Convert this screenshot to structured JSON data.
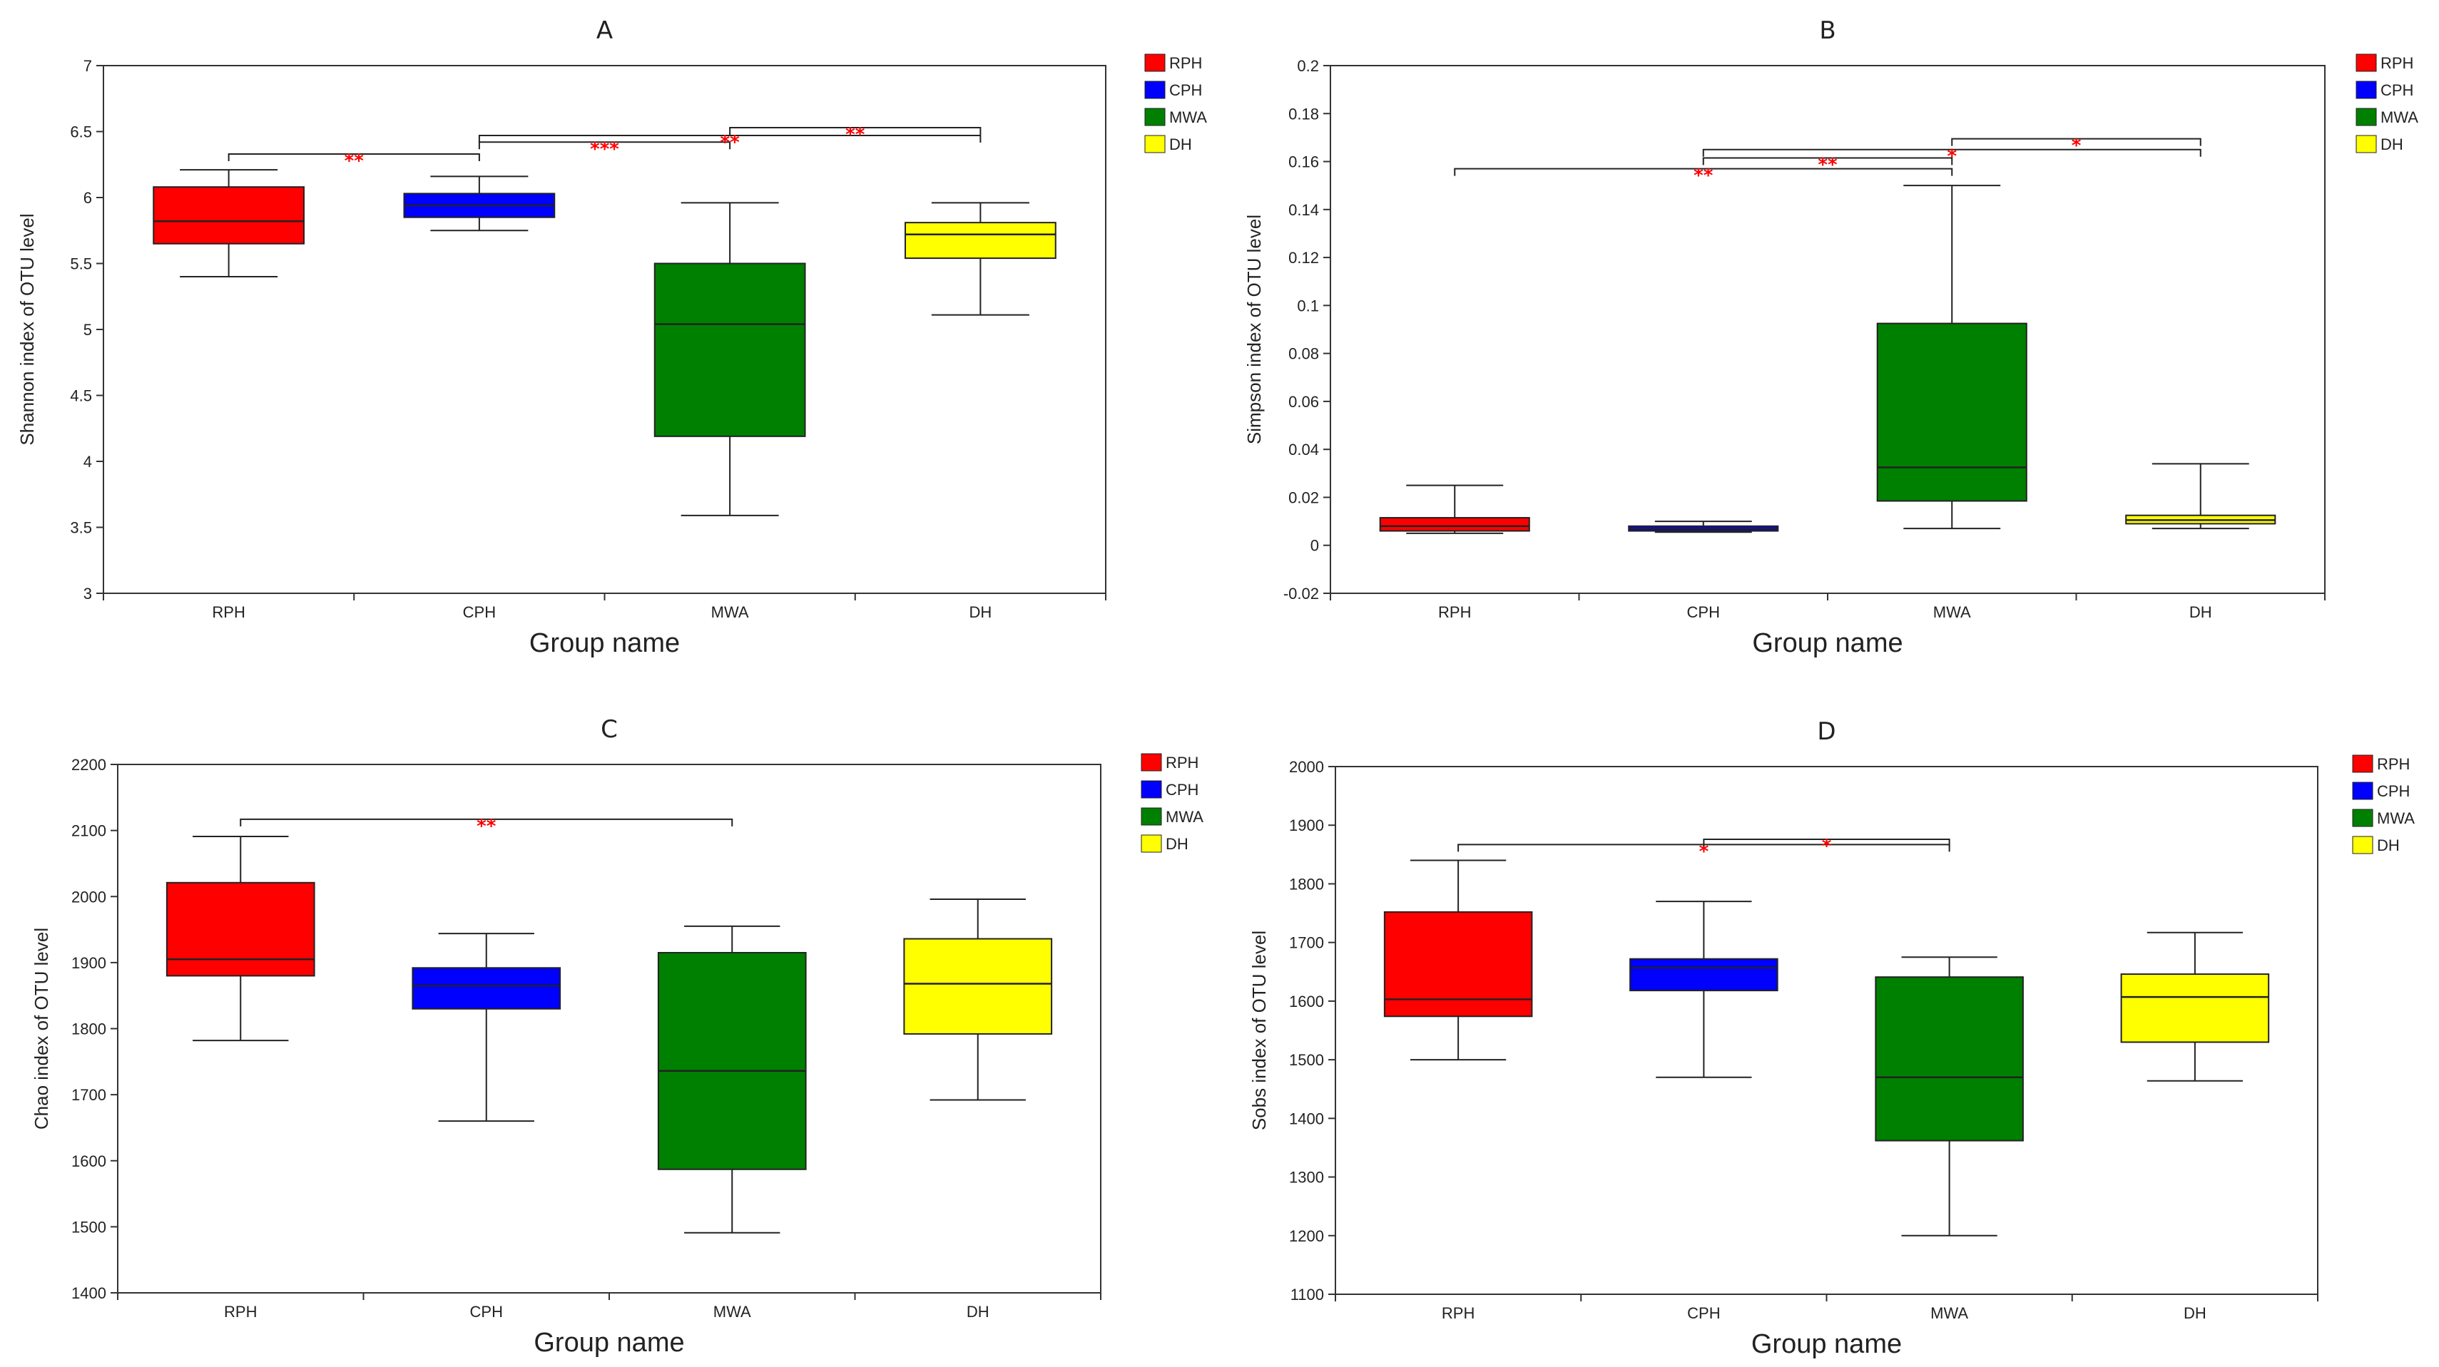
{
  "colors": {
    "RPH": "#ff0000",
    "CPH": "#0000ff",
    "MWA": "#008000",
    "DH": "#ffff00"
  },
  "legend": [
    "RPH",
    "CPH",
    "MWA",
    "DH"
  ],
  "chart_data": [
    {
      "type": "box",
      "title": "A",
      "xlabel": "Group name",
      "ylabel": "Shannon index of OTU level",
      "ylim": [
        3,
        7
      ],
      "yticks": [
        "3",
        "3.5",
        "4",
        "4.5",
        "5",
        "5.5",
        "6",
        "6.5",
        "7"
      ],
      "categories": [
        "RPH",
        "CPH",
        "MWA",
        "DH"
      ],
      "boxes": [
        {
          "min": 5.4,
          "q1": 5.65,
          "median": 5.82,
          "q3": 6.08,
          "max": 6.21
        },
        {
          "min": 5.75,
          "q1": 5.85,
          "median": 5.94,
          "q3": 6.03,
          "max": 6.16
        },
        {
          "min": 3.59,
          "q1": 4.19,
          "median": 5.04,
          "q3": 5.5,
          "max": 5.96
        },
        {
          "min": 5.11,
          "q1": 5.54,
          "median": 5.72,
          "q3": 5.81,
          "max": 5.96
        }
      ],
      "significance": [
        {
          "from": 0,
          "to": 1,
          "y": 6.33,
          "label": "**"
        },
        {
          "from": 1,
          "to": 2,
          "y": 6.42,
          "label": "***"
        },
        {
          "from": 1,
          "to": 3,
          "y": 6.47,
          "label": "**"
        },
        {
          "from": 2,
          "to": 3,
          "y": 6.53,
          "label": "**"
        }
      ]
    },
    {
      "type": "box",
      "title": "B",
      "xlabel": "Group name",
      "ylabel": "Simpson index of OTU level",
      "ylim": [
        -0.02,
        0.2
      ],
      "yticks": [
        "-0.02",
        "0",
        "0.02",
        "0.04",
        "0.06",
        "0.08",
        "0.1",
        "0.12",
        "0.14",
        "0.16",
        "0.18",
        "0.2"
      ],
      "categories": [
        "RPH",
        "CPH",
        "MWA",
        "DH"
      ],
      "boxes": [
        {
          "min": 0.005,
          "q1": 0.006,
          "median": 0.008,
          "q3": 0.0115,
          "max": 0.025
        },
        {
          "min": 0.0055,
          "q1": 0.006,
          "median": 0.007,
          "q3": 0.008,
          "max": 0.01
        },
        {
          "min": 0.007,
          "q1": 0.0185,
          "median": 0.0325,
          "q3": 0.0925,
          "max": 0.15
        },
        {
          "min": 0.007,
          "q1": 0.009,
          "median": 0.0105,
          "q3": 0.0125,
          "max": 0.034
        }
      ],
      "significance": [
        {
          "from": 0,
          "to": 2,
          "y": 0.157,
          "label": "**"
        },
        {
          "from": 1,
          "to": 2,
          "y": 0.1615,
          "label": "**"
        },
        {
          "from": 1,
          "to": 3,
          "y": 0.165,
          "label": "*"
        },
        {
          "from": 2,
          "to": 3,
          "y": 0.1695,
          "label": "*"
        }
      ]
    },
    {
      "type": "box",
      "title": "C",
      "xlabel": "Group name",
      "ylabel": "Chao index of OTU level",
      "ylim": [
        1400,
        2200
      ],
      "yticks": [
        "1400",
        "1500",
        "1600",
        "1700",
        "1800",
        "1900",
        "2000",
        "2100",
        "2200"
      ],
      "categories": [
        "RPH",
        "CPH",
        "MWA",
        "DH"
      ],
      "boxes": [
        {
          "min": 1782,
          "q1": 1880,
          "median": 1905,
          "q3": 2021,
          "max": 2091
        },
        {
          "min": 1660,
          "q1": 1830,
          "median": 1865,
          "q3": 1892,
          "max": 1944
        },
        {
          "min": 1491,
          "q1": 1587,
          "median": 1736,
          "q3": 1915,
          "max": 1955
        },
        {
          "min": 1692,
          "q1": 1792,
          "median": 1868,
          "q3": 1936,
          "max": 1996
        }
      ],
      "significance": [
        {
          "from": 0,
          "to": 2,
          "y": 2117,
          "label": "**"
        }
      ]
    },
    {
      "type": "box",
      "title": "D",
      "xlabel": "Group name",
      "ylabel": "Sobs index of OTU level",
      "ylim": [
        1100,
        2000
      ],
      "yticks": [
        "1100",
        "1200",
        "1300",
        "1400",
        "1500",
        "1600",
        "1700",
        "1800",
        "1900",
        "2000"
      ],
      "categories": [
        "RPH",
        "CPH",
        "MWA",
        "DH"
      ],
      "boxes": [
        {
          "min": 1500,
          "q1": 1574,
          "median": 1603,
          "q3": 1752,
          "max": 1840
        },
        {
          "min": 1470,
          "q1": 1618,
          "median": 1657,
          "q3": 1672,
          "max": 1770
        },
        {
          "min": 1200,
          "q1": 1362,
          "median": 1470,
          "q3": 1641,
          "max": 1675
        },
        {
          "min": 1464,
          "q1": 1530,
          "median": 1607,
          "q3": 1646,
          "max": 1717
        }
      ],
      "significance": [
        {
          "from": 0,
          "to": 2,
          "y": 1867,
          "label": "*"
        },
        {
          "from": 1,
          "to": 2,
          "y": 1876,
          "label": "*"
        }
      ]
    }
  ]
}
